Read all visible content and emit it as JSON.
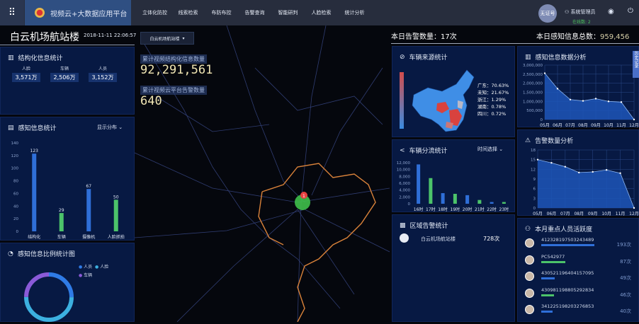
{
  "header": {
    "brand": "视频云+大数据应用平台",
    "nav": [
      "立体化防控",
      "线索检索",
      "布防布控",
      "告警查询",
      "智能研判",
      "人脸检索",
      "统计分析"
    ],
    "avatar": "无证号",
    "user": "系统管理员",
    "online": "在线数: 2"
  },
  "left": {
    "site": "白云机场航站楼",
    "datetime": "2018-11-11 22:06:57",
    "structured": {
      "title": "结构化信息统计",
      "items": [
        {
          "label": "人脸",
          "value": "3,571万"
        },
        {
          "label": "车辆",
          "value": "2,506万"
        },
        {
          "label": "人员",
          "value": "3,152万"
        }
      ]
    },
    "perception": {
      "title": "感知信息统计",
      "select": "显示分布"
    },
    "ratio": {
      "title": "感知信息比例统计图",
      "legend": [
        {
          "label": "人员",
          "color": "#2f7be6"
        },
        {
          "label": "人脸",
          "color": "#3cb0e0"
        },
        {
          "label": "车辆",
          "color": "#8a5ad8"
        }
      ]
    }
  },
  "map": {
    "dropdown": "白云机场航站楼",
    "stat1_label": "累计视频结构化信息数量",
    "stat1_value": "92,291,561",
    "stat2_label": "累计视频云平台告警数量",
    "stat2_value": "640",
    "marker": "1"
  },
  "right": {
    "alarm_label": "本日告警数量：",
    "alarm_value": "17次",
    "info_label": "本日感知信息总数：",
    "info_value": "959,456",
    "source": {
      "title": "车辆来源统计",
      "scale_high": "high",
      "scale_low": "low",
      "list": [
        {
          "name": "广东",
          "pct": "70.63%"
        },
        {
          "name": "未知",
          "pct": "21.67%"
        },
        {
          "name": "浙江",
          "pct": "1.29%"
        },
        {
          "name": "湖南",
          "pct": "0.78%"
        },
        {
          "name": "四川",
          "pct": "0.72%"
        }
      ]
    },
    "flow": {
      "title": "车辆分流统计",
      "select": "时间选择"
    },
    "region": {
      "title": "区域告警统计",
      "name": "白云机场航站楼",
      "count": "728次"
    },
    "info_analysis": {
      "title": "感知信息数据分析"
    },
    "alarm_analysis": {
      "title": "告警数量分析"
    },
    "persons": {
      "title": "本月重点人员活跃度",
      "list": [
        {
          "id": "412328197503243489",
          "count": "193次",
          "pct": 100,
          "color": "#2f6fd8"
        },
        {
          "id": "PC542977",
          "count": "87次",
          "pct": 45,
          "color": "#4cc36a"
        },
        {
          "id": "430521196404157095",
          "count": "49次",
          "pct": 25,
          "color": "#2f6fd8"
        },
        {
          "id": "430981198805292834",
          "count": "46次",
          "pct": 24,
          "color": "#4cc36a"
        },
        {
          "id": "341225198203276853",
          "count": "40次",
          "pct": 21,
          "color": "#2f6fd8"
        }
      ]
    },
    "side_tab": "历史记录"
  },
  "chart_data": [
    {
      "type": "bar",
      "id": "perception",
      "categories": [
        "结构化",
        "车辆",
        "摄像机",
        "人脸抓拍"
      ],
      "values": [
        123,
        29,
        67,
        50
      ],
      "colors": [
        "#2f6fd8",
        "#4cc36a",
        "#2f6fd8",
        "#4cc36a"
      ],
      "ylim": [
        0,
        140
      ],
      "yticks": [
        0,
        20,
        40,
        60,
        80,
        100,
        120,
        140
      ]
    },
    {
      "type": "bar",
      "id": "flow",
      "categories": [
        "16时",
        "17时",
        "18时",
        "19时",
        "20时",
        "21时",
        "22时",
        "23时"
      ],
      "values": [
        11500,
        7500,
        3100,
        2900,
        2500,
        1100,
        500,
        500
      ],
      "colors": [
        "#2f6fd8",
        "#4cc36a",
        "#2f6fd8",
        "#4cc36a",
        "#2f6fd8",
        "#4cc36a",
        "#2f6fd8",
        "#4cc36a"
      ],
      "ylim": [
        0,
        12000
      ],
      "yticks": [
        0,
        2000,
        4000,
        6000,
        8000,
        10000,
        12000
      ]
    },
    {
      "type": "area",
      "id": "info",
      "categories": [
        "05月",
        "06月",
        "07月",
        "08月",
        "09月",
        "10月",
        "11月",
        "12月"
      ],
      "values": [
        2550000,
        1700000,
        1100000,
        1030000,
        1150000,
        1000000,
        960000,
        0
      ],
      "ylim": [
        0,
        3000000
      ],
      "yticks": [
        0,
        500000,
        1000000,
        1500000,
        2000000,
        2500000,
        3000000
      ]
    },
    {
      "type": "area",
      "id": "alarm",
      "categories": [
        "05月",
        "06月",
        "07月",
        "08月",
        "09月",
        "10月",
        "11月",
        "12月"
      ],
      "values": [
        15,
        14,
        12.8,
        11,
        11.2,
        11.8,
        10.8,
        0
      ],
      "ylim": [
        0,
        18
      ],
      "yticks": [
        0,
        3,
        6,
        9,
        12,
        15,
        18
      ]
    },
    {
      "type": "pie",
      "id": "ratio",
      "labels": [
        "人员",
        "人脸",
        "车辆"
      ],
      "values": [
        25,
        50,
        25
      ]
    }
  ]
}
